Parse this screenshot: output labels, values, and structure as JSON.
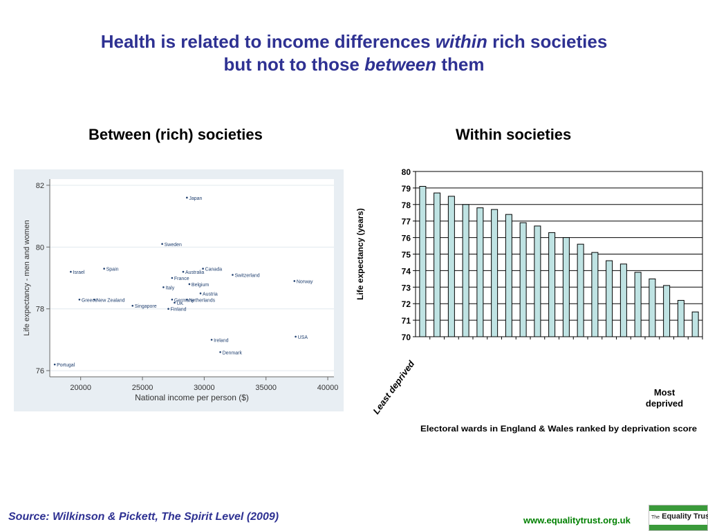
{
  "title": {
    "line1_pre": "Health is related to income differences ",
    "line1_em": "within",
    "line1_post": " rich societies",
    "line2_pre": "but not to those ",
    "line2_em": "between",
    "line2_post": " them"
  },
  "subtitles": {
    "left": "Between (rich) societies",
    "right": "Within societies"
  },
  "footer": {
    "source": "Source: Wilkinson & Pickett, The Spirit Level (2009)",
    "url": "www.equalitytrust.org.uk",
    "logo_small": "The",
    "logo_main": "Equality Trust"
  },
  "colors": {
    "title": "#2e3192",
    "bar_fill": "#bfe3e3",
    "scatter_bg": "#e8eef3",
    "url": "#008000",
    "logo": "#3a9a3a"
  },
  "chart_data": [
    {
      "type": "scatter",
      "xlabel": "National income per person ($)",
      "ylabel": "Life expectancy - men and women",
      "xlim": [
        17500,
        40500
      ],
      "ylim": [
        75.8,
        82.2
      ],
      "xticks": [
        20000,
        25000,
        30000,
        35000,
        40000
      ],
      "yticks": [
        76,
        78,
        80,
        82
      ],
      "grid": "horizontal",
      "points": [
        {
          "label": "Japan",
          "x": 28600,
          "y": 81.6
        },
        {
          "label": "Sweden",
          "x": 26600,
          "y": 80.1
        },
        {
          "label": "Israel",
          "x": 19200,
          "y": 79.2
        },
        {
          "label": "Spain",
          "x": 21900,
          "y": 79.3
        },
        {
          "label": "Canada",
          "x": 29900,
          "y": 79.3
        },
        {
          "label": "Australia",
          "x": 28300,
          "y": 79.2
        },
        {
          "label": "France",
          "x": 27400,
          "y": 79.0
        },
        {
          "label": "Switzerland",
          "x": 32300,
          "y": 79.1
        },
        {
          "label": "Norway",
          "x": 37300,
          "y": 78.9
        },
        {
          "label": "Belgium",
          "x": 28800,
          "y": 78.8
        },
        {
          "label": "Italy",
          "x": 26700,
          "y": 78.7
        },
        {
          "label": "Austria",
          "x": 29700,
          "y": 78.5
        },
        {
          "label": "Greece",
          "x": 19900,
          "y": 78.3
        },
        {
          "label": "New Zealand",
          "x": 21100,
          "y": 78.3
        },
        {
          "label": "Germany",
          "x": 27400,
          "y": 78.3
        },
        {
          "label": "UK",
          "x": 27600,
          "y": 78.2
        },
        {
          "label": "Netherlands",
          "x": 28600,
          "y": 78.3
        },
        {
          "label": "Singapore",
          "x": 24200,
          "y": 78.1
        },
        {
          "label": "Finland",
          "x": 27100,
          "y": 78.0
        },
        {
          "label": "Ireland",
          "x": 30600,
          "y": 77.0
        },
        {
          "label": "USA",
          "x": 37400,
          "y": 77.1
        },
        {
          "label": "Denmark",
          "x": 31300,
          "y": 76.6
        },
        {
          "label": "Portugal",
          "x": 17900,
          "y": 76.2
        }
      ]
    },
    {
      "type": "bar",
      "ylabel": "Life expectancy (years)",
      "xlabel": "Electoral wards in England & Wales ranked by deprivation score",
      "first_label": "Least deprived",
      "last_label": "Most deprived",
      "ylim": [
        70,
        80
      ],
      "yticks": [
        70,
        71,
        72,
        73,
        74,
        75,
        76,
        77,
        78,
        79,
        80
      ],
      "grid": "horizontal",
      "values": [
        79.1,
        78.7,
        78.5,
        78.0,
        77.8,
        77.7,
        77.4,
        76.9,
        76.7,
        76.3,
        76.0,
        75.6,
        75.1,
        74.6,
        74.4,
        73.9,
        73.5,
        73.1,
        72.2,
        71.5
      ]
    }
  ]
}
